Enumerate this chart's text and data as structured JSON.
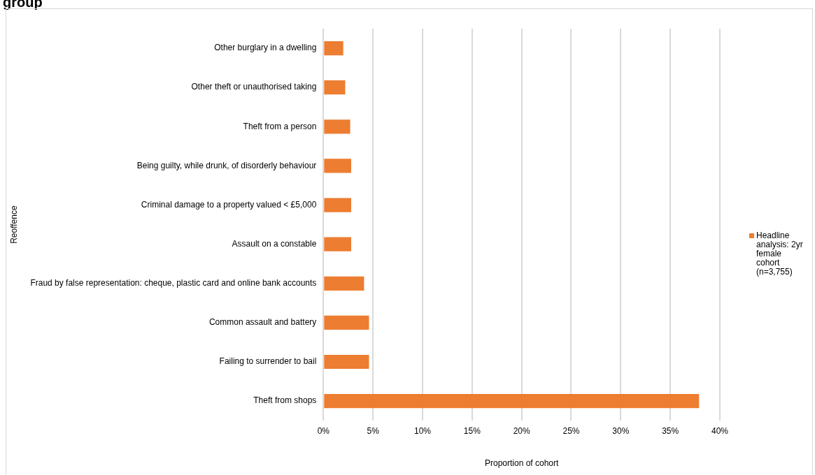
{
  "chart_data": {
    "type": "bar",
    "title": "group",
    "orientation": "horizontal",
    "ylabel": "Reoffence",
    "xlabel": "Proportion of cohort",
    "categories": [
      "Other burglary in a dwelling",
      "Other theft or unauthorised taking",
      "Theft from a person",
      "Being guilty, while drunk, of disorderly behaviour",
      "Criminal damage to a property valued < £5,000",
      "Assault on a constable",
      "Fraud by false representation: cheque, plastic card and online bank accounts",
      "Common assault and battery",
      "Failing to surrender to bail",
      "Theft from shops"
    ],
    "series": [
      {
        "name": "Headline analysis: 2yr female cohort (n=3,755)",
        "color": "#ed7d31",
        "values": [
          2.0,
          2.2,
          2.7,
          2.8,
          2.8,
          2.8,
          4.1,
          4.6,
          4.6,
          37.9
        ]
      }
    ],
    "xlim": [
      0,
      40
    ],
    "xticks": [
      {
        "value": 0,
        "label": "0%"
      },
      {
        "value": 5,
        "label": "5%"
      },
      {
        "value": 10,
        "label": "10%"
      },
      {
        "value": 15,
        "label": "15%"
      },
      {
        "value": 20,
        "label": "20%"
      },
      {
        "value": 25,
        "label": "25%"
      },
      {
        "value": 30,
        "label": "30%"
      },
      {
        "value": 35,
        "label": "35%"
      },
      {
        "value": 40,
        "label": "40%"
      }
    ],
    "grid": "x",
    "legend": "right"
  }
}
